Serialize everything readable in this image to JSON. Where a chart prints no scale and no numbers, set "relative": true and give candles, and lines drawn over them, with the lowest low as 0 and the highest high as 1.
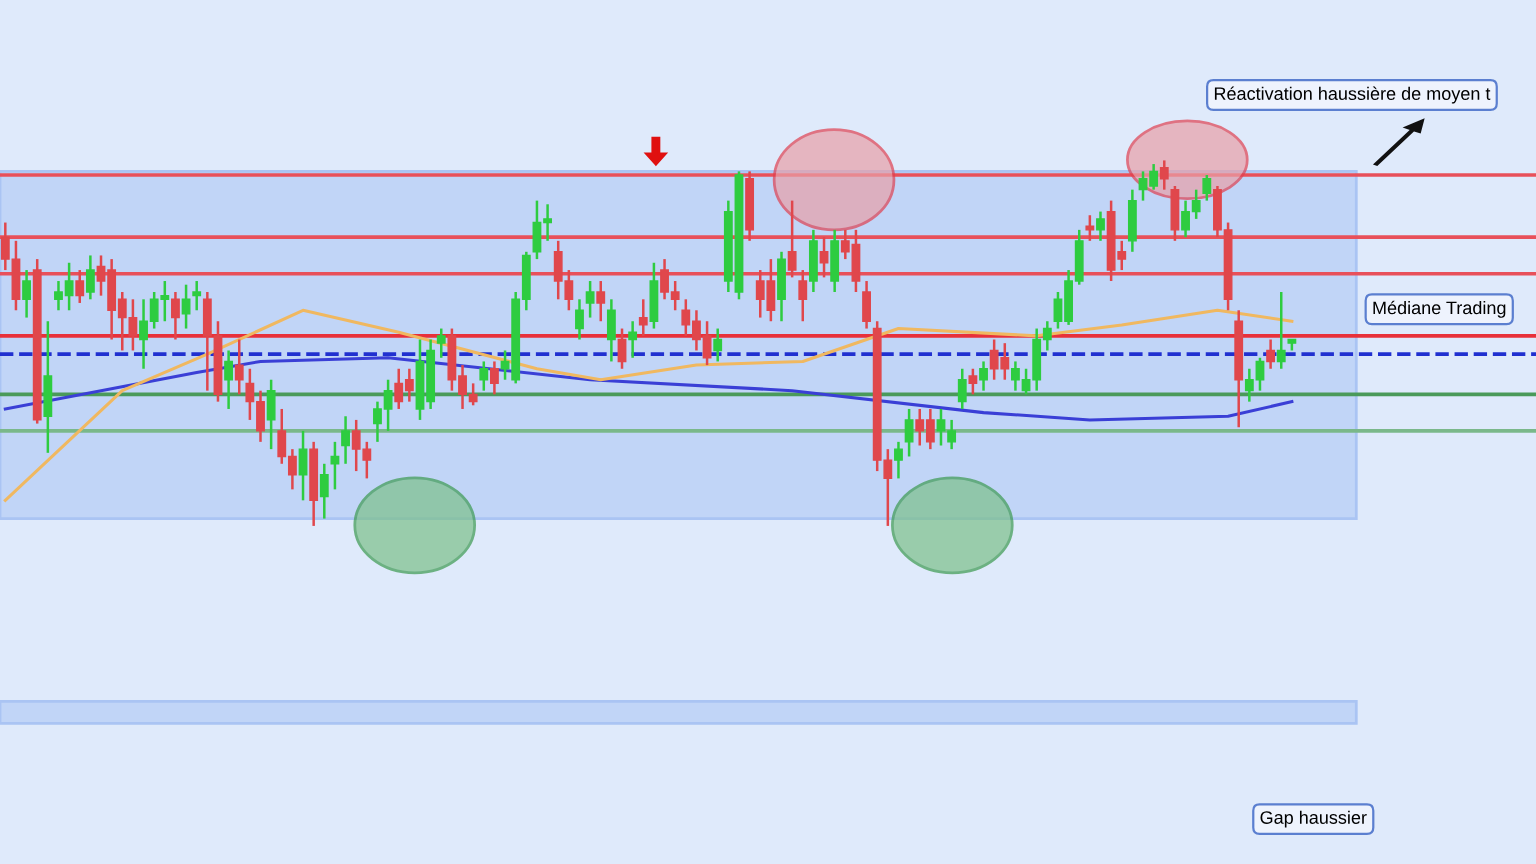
{
  "chart_data": {
    "type": "candlestick",
    "relative": true,
    "categories": [
      null,
      null,
      null,
      null,
      null,
      null,
      null,
      null,
      null,
      null,
      null,
      null,
      null,
      null,
      null,
      null,
      null,
      null,
      null,
      null,
      null,
      null,
      null,
      null,
      null,
      null,
      null,
      null,
      null,
      null,
      null,
      null,
      null,
      null,
      null,
      null,
      null,
      null,
      null,
      null,
      null,
      null,
      null,
      null,
      null,
      null,
      null,
      null,
      null,
      null,
      null,
      null,
      null,
      null,
      null,
      null,
      null,
      null,
      null,
      null,
      null,
      null,
      null,
      null,
      null,
      null,
      null,
      null,
      null,
      null,
      null,
      null,
      null,
      null,
      null,
      null,
      null,
      null,
      null,
      null,
      null,
      null,
      null,
      null,
      null,
      null,
      null,
      null,
      null,
      null,
      null,
      null,
      null,
      null,
      null,
      null,
      null,
      null,
      null,
      null,
      null,
      null,
      null,
      null,
      null,
      null,
      null,
      null,
      null,
      null,
      null,
      null,
      null,
      null,
      null,
      null,
      null,
      null,
      null,
      null,
      null,
      null
    ],
    "colors": [
      "#e0474c",
      "#e0474c",
      "#2ecc40",
      "#e0474c",
      "#2ecc40",
      "#2ecc40",
      "#2ecc40",
      "#e0474c",
      "#2ecc40",
      "#e0474c",
      "#e0474c",
      "#e0474c",
      "#e0474c",
      "#2ecc40",
      "#2ecc40",
      "#2ecc40",
      "#e0474c",
      "#2ecc40",
      "#2ecc40",
      "#e0474c",
      "#e0474c",
      "#2ecc40",
      "#e0474c",
      "#e0474c",
      "#e0474c",
      "#2ecc40",
      "#e0474c",
      "#e0474c",
      "#2ecc40",
      "#e0474c",
      "#2ecc40",
      "#2ecc40",
      "#2ecc40",
      "#e0474c",
      "#e0474c",
      "#2ecc40",
      "#2ecc40",
      "#e0474c",
      "#e0474c",
      "#2ecc40",
      "#2ecc40",
      "#2ecc40",
      "#e0474c",
      "#e0474c",
      "#e0474c",
      "#2ecc40",
      "#e0474c",
      "#2ecc40",
      "#2ecc40",
      "#2ecc40",
      "#2ecc40",
      "#2ecc40",
      "#e0474c",
      "#e0474c",
      "#2ecc40",
      "#2ecc40",
      "#e0474c",
      "#2ecc40",
      "#e0474c",
      "#2ecc40",
      "#e0474c",
      "#2ecc40",
      "#e0474c",
      "#e0474c",
      "#e0474c",
      "#e0474c",
      "#e0474c",
      "#2ecc40",
      "#2ecc40",
      "#2ecc40",
      "#e0474c",
      "#e0474c",
      "#e0474c",
      "#2ecc40",
      "#e0474c",
      "#e0474c",
      "#2ecc40",
      "#e0474c",
      "#2ecc40",
      "#e0474c",
      "#e0474c",
      "#e0474c",
      "#e0474c",
      "#e0474c",
      "#2ecc40",
      "#2ecc40",
      "#e0474c",
      "#e0474c",
      "#2ecc40",
      "#2ecc40",
      "#2ecc40",
      "#e0474c",
      "#2ecc40",
      "#e0474c",
      "#e0474c",
      "#2ecc40",
      "#2ecc40",
      "#2ecc40",
      "#2ecc40",
      "#2ecc40",
      "#2ecc40",
      "#2ecc40",
      "#e0474c",
      "#2ecc40",
      "#e0474c",
      "#e0474c",
      "#2ecc40",
      "#2ecc40",
      "#2ecc40",
      "#e0474c",
      "#e0474c",
      "#2ecc40",
      "#2ecc40",
      "#2ecc40",
      "#e0474c",
      "#e0474c",
      "#e0474c",
      "#2ecc40",
      "#2ecc40",
      "#e0474c",
      "#2ecc40",
      "#2ecc40"
    ],
    "ohlc": [
      [
        0.79,
        0.83,
        0.7,
        0.73
      ],
      [
        0.73,
        0.78,
        0.59,
        0.62
      ],
      [
        0.62,
        0.7,
        0.57,
        0.67
      ],
      [
        0.7,
        0.73,
        0.28,
        0.29
      ],
      [
        0.3,
        0.56,
        0.2,
        0.41
      ],
      [
        0.62,
        0.67,
        0.59,
        0.64
      ],
      [
        0.63,
        0.72,
        0.59,
        0.67
      ],
      [
        0.67,
        0.7,
        0.61,
        0.63
      ],
      [
        0.64,
        0.74,
        0.62,
        0.7
      ],
      [
        0.71,
        0.74,
        0.63,
        0.67
      ],
      [
        0.7,
        0.73,
        0.51,
        0.59
      ],
      [
        0.62,
        0.64,
        0.48,
        0.57
      ],
      [
        0.57,
        0.62,
        0.48,
        0.52
      ],
      [
        0.51,
        0.62,
        0.43,
        0.56
      ],
      [
        0.56,
        0.64,
        0.54,
        0.62
      ],
      [
        0.62,
        0.67,
        0.56,
        0.63
      ],
      [
        0.62,
        0.64,
        0.51,
        0.57
      ],
      [
        0.58,
        0.66,
        0.54,
        0.62
      ],
      [
        0.63,
        0.67,
        0.59,
        0.64
      ],
      [
        0.62,
        0.64,
        0.37,
        0.52
      ],
      [
        0.52,
        0.56,
        0.34,
        0.36
      ],
      [
        0.4,
        0.48,
        0.32,
        0.45
      ],
      [
        0.44,
        0.51,
        0.36,
        0.4
      ],
      [
        0.39,
        0.43,
        0.29,
        0.34
      ],
      [
        0.34,
        0.37,
        0.23,
        0.26
      ],
      [
        0.29,
        0.4,
        0.21,
        0.37
      ],
      [
        0.26,
        0.32,
        0.17,
        0.19
      ],
      [
        0.19,
        0.21,
        0.1,
        0.14
      ],
      [
        0.14,
        0.26,
        0.07,
        0.21
      ],
      [
        0.21,
        0.23,
        0,
        0.07
      ],
      [
        0.08,
        0.17,
        0.02,
        0.14
      ],
      [
        0.17,
        0.23,
        0.1,
        0.19
      ],
      [
        0.22,
        0.3,
        0.17,
        0.26
      ],
      [
        0.26,
        0.29,
        0.15,
        0.21
      ],
      [
        0.21,
        0.23,
        0.13,
        0.18
      ],
      [
        0.28,
        0.34,
        0.23,
        0.32
      ],
      [
        0.32,
        0.4,
        0.26,
        0.37
      ],
      [
        0.39,
        0.43,
        0.32,
        0.34
      ],
      [
        0.4,
        0.43,
        0.34,
        0.37
      ],
      [
        0.32,
        0.51,
        0.29,
        0.45
      ],
      [
        0.34,
        0.51,
        0.32,
        0.48
      ],
      [
        0.5,
        0.54,
        0.46,
        0.52
      ],
      [
        0.52,
        0.54,
        0.37,
        0.4
      ],
      [
        0.41,
        0.44,
        0.32,
        0.36
      ],
      [
        0.36,
        0.39,
        0.33,
        0.34
      ],
      [
        0.4,
        0.45,
        0.37,
        0.43
      ],
      [
        0.43,
        0.45,
        0.36,
        0.39
      ],
      [
        0.43,
        0.48,
        0.4,
        0.45
      ],
      [
        0.4,
        0.64,
        0.39,
        0.62
      ],
      [
        0.62,
        0.75,
        0.59,
        0.74
      ],
      [
        0.75,
        0.89,
        0.73,
        0.83
      ],
      [
        0.83,
        0.88,
        0.78,
        0.84
      ],
      [
        0.75,
        0.78,
        0.62,
        0.67
      ],
      [
        0.67,
        0.7,
        0.59,
        0.62
      ],
      [
        0.54,
        0.62,
        0.51,
        0.59
      ],
      [
        0.61,
        0.67,
        0.57,
        0.64
      ],
      [
        0.64,
        0.67,
        0.56,
        0.61
      ],
      [
        0.51,
        0.62,
        0.45,
        0.59
      ],
      [
        0.51,
        0.54,
        0.43,
        0.45
      ],
      [
        0.51,
        0.56,
        0.46,
        0.53
      ],
      [
        0.57,
        0.62,
        0.52,
        0.55
      ],
      [
        0.56,
        0.72,
        0.54,
        0.67
      ],
      [
        0.7,
        0.73,
        0.62,
        0.64
      ],
      [
        0.64,
        0.67,
        0.59,
        0.62
      ],
      [
        0.59,
        0.62,
        0.52,
        0.55
      ],
      [
        0.56,
        0.59,
        0.48,
        0.51
      ],
      [
        0.52,
        0.56,
        0.44,
        0.46
      ],
      [
        0.48,
        0.54,
        0.45,
        0.51
      ],
      [
        0.67,
        0.89,
        0.64,
        0.86
      ],
      [
        0.64,
        0.97,
        0.62,
        0.96
      ],
      [
        0.95,
        0.97,
        0.78,
        0.81
      ],
      [
        0.67,
        0.7,
        0.57,
        0.62
      ],
      [
        0.67,
        0.73,
        0.56,
        0.59
      ],
      [
        0.62,
        0.75,
        0.56,
        0.73
      ],
      [
        0.75,
        0.89,
        0.68,
        0.7
      ],
      [
        0.67,
        0.7,
        0.56,
        0.62
      ],
      [
        0.67,
        0.81,
        0.64,
        0.78
      ],
      [
        0.75,
        0.79,
        0.68,
        0.72
      ],
      [
        0.67,
        0.81,
        0.64,
        0.78
      ],
      [
        0.78,
        0.81,
        0.73,
        0.75
      ],
      [
        0.77,
        0.81,
        0.64,
        0.67
      ],
      [
        0.64,
        0.67,
        0.54,
        0.56
      ],
      [
        0.54,
        0.56,
        0.15,
        0.18
      ],
      [
        0.18,
        0.21,
        0,
        0.13
      ],
      [
        0.18,
        0.23,
        0.13,
        0.21
      ],
      [
        0.23,
        0.32,
        0.19,
        0.29
      ],
      [
        0.29,
        0.32,
        0.22,
        0.26
      ],
      [
        0.29,
        0.32,
        0.21,
        0.23
      ],
      [
        0.26,
        0.32,
        0.22,
        0.29
      ],
      [
        0.23,
        0.29,
        0.21,
        0.26
      ],
      [
        0.34,
        0.43,
        0.32,
        0.4
      ],
      [
        0.41,
        0.43,
        0.36,
        0.39
      ],
      [
        0.4,
        0.45,
        0.37,
        0.43
      ],
      [
        0.48,
        0.51,
        0.4,
        0.43
      ],
      [
        0.46,
        0.5,
        0.4,
        0.43
      ],
      [
        0.4,
        0.45,
        0.37,
        0.43
      ],
      [
        0.37,
        0.43,
        0.36,
        0.4
      ],
      [
        0.4,
        0.54,
        0.37,
        0.51
      ],
      [
        0.51,
        0.56,
        0.48,
        0.54
      ],
      [
        0.56,
        0.64,
        0.54,
        0.62
      ],
      [
        0.56,
        0.7,
        0.55,
        0.67
      ],
      [
        0.67,
        0.81,
        0.66,
        0.78
      ],
      [
        0.82,
        0.85,
        0.78,
        0.81
      ],
      [
        0.81,
        0.86,
        0.78,
        0.84
      ],
      [
        0.86,
        0.89,
        0.67,
        0.7
      ],
      [
        0.75,
        0.78,
        0.7,
        0.73
      ],
      [
        0.78,
        0.92,
        0.75,
        0.89
      ],
      [
        0.92,
        0.97,
        0.89,
        0.95
      ],
      [
        0.93,
        0.99,
        0.92,
        0.97
      ],
      [
        0.98,
        1,
        0.92,
        0.95
      ],
      [
        0.92,
        0.93,
        0.78,
        0.81
      ],
      [
        0.81,
        0.89,
        0.79,
        0.86
      ],
      [
        0.86,
        0.92,
        0.84,
        0.89
      ],
      [
        0.91,
        0.96,
        0.89,
        0.95
      ],
      [
        0.92,
        0.93,
        0.79,
        0.81
      ],
      [
        0.81,
        0.83,
        0.59,
        0.62
      ],
      [
        0.56,
        0.59,
        0.27,
        0.4
      ],
      [
        0.37,
        0.43,
        0.34,
        0.4
      ],
      [
        0.4,
        0.46,
        0.37,
        0.45
      ],
      [
        0.48,
        0.51,
        0.43,
        0.45
      ],
      [
        0.45,
        0.64,
        0.43,
        0.48
      ],
      [
        0.5,
        0.51,
        0.48,
        0.51
      ]
    ],
    "series": [
      {
        "type": "line",
        "color": "#3a3fd6",
        "values": [
          0.32,
          null,
          null,
          null,
          null,
          null,
          null,
          null,
          null,
          null,
          null,
          null,
          null,
          null,
          null,
          null,
          null,
          null,
          0.42,
          null,
          null,
          null,
          null,
          null,
          0.45,
          null,
          null,
          null,
          null,
          null,
          null,
          null,
          null,
          null,
          null,
          null,
          0.46,
          null,
          null,
          null,
          null,
          null,
          null,
          null,
          null,
          null,
          null,
          null,
          null,
          null,
          null,
          null,
          null,
          null,
          null,
          0.4,
          null,
          null,
          null,
          null,
          null,
          null,
          null,
          null,
          null,
          null,
          null,
          null,
          null,
          null,
          null,
          null,
          null,
          null,
          0.37,
          null,
          null,
          null,
          null,
          null,
          null,
          null,
          null,
          null,
          null,
          null,
          null,
          null,
          null,
          null,
          null,
          null,
          0.31,
          null,
          null,
          null,
          null,
          null,
          null,
          null,
          null,
          null,
          0.29,
          null,
          null,
          null,
          null,
          null,
          null,
          null,
          null,
          null,
          null,
          null,
          null,
          0.3,
          null,
          null,
          null,
          null,
          null,
          0.34
        ]
      },
      {
        "type": "line",
        "color": "#f0b860",
        "values": [
          0.07,
          null,
          null,
          null,
          null,
          null,
          null,
          null,
          null,
          null,
          null,
          0.37,
          null,
          null,
          null,
          null,
          null,
          null,
          null,
          0.47,
          null,
          null,
          null,
          null,
          null,
          null,
          null,
          null,
          0.59,
          null,
          null,
          null,
          null,
          null,
          null,
          null,
          null,
          0.53,
          null,
          null,
          null,
          null,
          null,
          null,
          null,
          null,
          null,
          null,
          null,
          null,
          0.43,
          null,
          null,
          null,
          null,
          null,
          0.4,
          null,
          null,
          null,
          null,
          null,
          null,
          null,
          null,
          0.44,
          null,
          null,
          null,
          null,
          null,
          null,
          null,
          null,
          null,
          0.45,
          null,
          null,
          null,
          null,
          null,
          null,
          null,
          null,
          0.54,
          null,
          null,
          null,
          null,
          null,
          null,
          null,
          null,
          null,
          null,
          null,
          null,
          0.52,
          null,
          null,
          null,
          null,
          null,
          null,
          null,
          0.55,
          null,
          null,
          null,
          null,
          null,
          null,
          null,
          null,
          0.59,
          null,
          null,
          null,
          null,
          null,
          null,
          0.56
        ]
      }
    ],
    "ref_lines": [
      {
        "axis": "y",
        "value": 0.96,
        "color": "#e8505a",
        "line_style": "solid"
      },
      {
        "axis": "y",
        "value": 0.79,
        "color": "#e8505a",
        "line_style": "solid"
      },
      {
        "axis": "y",
        "value": 0.69,
        "color": "#e8505a",
        "line_style": "solid"
      },
      {
        "axis": "y",
        "value": 0.52,
        "color": "#e8303a",
        "line_style": "solid"
      },
      {
        "axis": "y",
        "value": 0.47,
        "color": "#2030d0",
        "line_style": "dashed"
      },
      {
        "axis": "y",
        "value": 0.36,
        "color": "#4a9a5a",
        "line_style": "solid"
      },
      {
        "axis": "y",
        "value": 0.26,
        "color": "#7ab88a",
        "line_style": "solid"
      }
    ],
    "bands": [
      {
        "axis": "y",
        "from": 0.02,
        "to": 0.97,
        "color": "#a9c4f5"
      },
      {
        "axis": "y",
        "from": -0.54,
        "to": -0.48,
        "color": "#a9c4f5"
      }
    ],
    "annotations": [
      "Réactivation haussière de moyen t",
      "Médiane Trading",
      "Gap haussier"
    ]
  }
}
